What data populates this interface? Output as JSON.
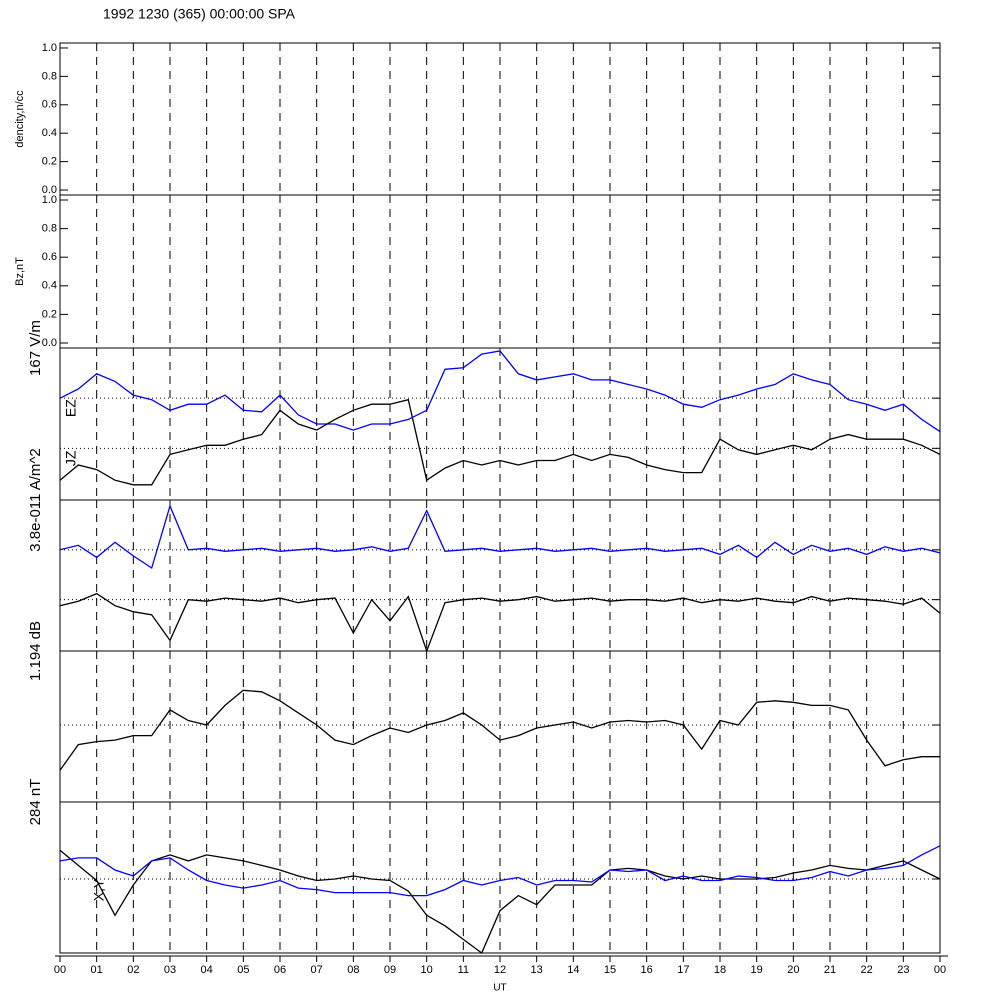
{
  "chart_data": [
    {
      "type": "line",
      "title": "1992 1230 (365) 00:00:00 SPA",
      "ylabel": "dencity,n/cc",
      "xlim": [
        0,
        24
      ],
      "ylim": [
        -0.035,
        1.035
      ],
      "yticks": [
        {
          "value": 0,
          "label": "0.0"
        },
        0.2,
        0.4,
        0.6,
        0.8,
        {
          "value": 1,
          "label": "1.0"
        }
      ],
      "grid": true
    },
    {
      "type": "line",
      "ylabel": "Bz,nT",
      "xlim": [
        0,
        24
      ],
      "ylim": [
        -0.035,
        1.035
      ],
      "yticks": [
        {
          "value": 0,
          "label": "0.0"
        },
        0.2,
        0.4,
        0.6,
        0.8,
        {
          "value": 1,
          "label": "1.0"
        }
      ],
      "grid": true
    },
    {
      "type": "line",
      "ylabel": "167 V/m",
      "xlim": [
        0,
        24
      ],
      "ylim": [
        0,
        100
      ],
      "hlines": [
        67,
        34
      ],
      "grid": true,
      "x": [
        0,
        0.5,
        1,
        1.5,
        2,
        2.5,
        3,
        3.5,
        4,
        4.5,
        5,
        5.5,
        6,
        6.5,
        7,
        7.5,
        8,
        8.5,
        9,
        9.5,
        10,
        10.5,
        11,
        11.5,
        12,
        12.5,
        13,
        13.5,
        14,
        14.5,
        15,
        15.5,
        16,
        16.5,
        17,
        17.5,
        18,
        18.5,
        19,
        19.5,
        20,
        20.5,
        21,
        21.5,
        22,
        22.5,
        23,
        23.5,
        24
      ],
      "series": [
        {
          "name": "EZ",
          "color": "#0000ff",
          "values": [
            67,
            73,
            83,
            78,
            69,
            66,
            59,
            63,
            63,
            69,
            59,
            58,
            69,
            56,
            50,
            50,
            46,
            50,
            50,
            53,
            59,
            86,
            87,
            96,
            98,
            83,
            79,
            81,
            83,
            79,
            79,
            76,
            73,
            69,
            63,
            61,
            66,
            69,
            73,
            76,
            83,
            79,
            76,
            66,
            63,
            59,
            63,
            53,
            45
          ]
        },
        {
          "name": "JZ",
          "color": "#000000",
          "values": [
            13,
            23,
            20,
            13,
            10,
            10,
            30,
            33,
            36,
            36,
            40,
            43,
            59,
            50,
            46,
            53,
            59,
            63,
            63,
            66,
            13,
            21,
            26,
            23,
            26,
            23,
            26,
            26,
            30,
            26,
            30,
            28,
            23,
            20,
            18,
            18,
            40,
            33,
            30,
            33,
            36,
            33,
            40,
            43,
            40,
            40,
            40,
            36,
            30
          ]
        }
      ]
    },
    {
      "type": "line",
      "ylabel": "3.8e-011 A/m^2",
      "xlim": [
        0,
        24
      ],
      "ylim": [
        0,
        100
      ],
      "hlines": [
        67,
        34
      ],
      "grid": true,
      "x": [
        0,
        0.5,
        1,
        1.5,
        2,
        2.5,
        3,
        3.5,
        4,
        4.5,
        5,
        5.5,
        6,
        6.5,
        7,
        7.5,
        8,
        8.5,
        9,
        9.5,
        10,
        10.5,
        11,
        11.5,
        12,
        12.5,
        13,
        13.5,
        14,
        14.5,
        15,
        15.5,
        16,
        16.5,
        17,
        17.5,
        18,
        18.5,
        19,
        19.5,
        20,
        20.5,
        21,
        21.5,
        22,
        22.5,
        23,
        23.5,
        24
      ],
      "series": [
        {
          "color": "#0000ff",
          "values": [
            67,
            70,
            62,
            72,
            63,
            55,
            96,
            67,
            68,
            66,
            67,
            68,
            66,
            67,
            68,
            66,
            67,
            69,
            66,
            68,
            93,
            66,
            67,
            68,
            66,
            67,
            68,
            66,
            67,
            68,
            66,
            67,
            68,
            66,
            67,
            68,
            64,
            70,
            62,
            72,
            64,
            70,
            66,
            68,
            64,
            69,
            66,
            68,
            65
          ]
        },
        {
          "color": "#000000",
          "values": [
            30,
            33,
            38,
            30,
            26,
            24,
            7,
            34,
            33,
            35,
            34,
            33,
            35,
            32,
            34,
            35,
            12,
            34,
            20,
            36,
            0,
            32,
            34,
            35,
            33,
            34,
            36,
            33,
            34,
            35,
            33,
            34,
            34,
            33,
            35,
            32,
            34,
            33,
            35,
            33,
            32,
            36,
            33,
            35,
            34,
            33,
            31,
            35,
            25
          ]
        }
      ]
    },
    {
      "type": "line",
      "ylabel": "1.194 dB",
      "xlim": [
        0,
        24
      ],
      "ylim": [
        0,
        100
      ],
      "hlines": [
        51
      ],
      "grid": true,
      "x": [
        0,
        0.5,
        1,
        1.5,
        2,
        2.5,
        3,
        3.5,
        4,
        4.5,
        5,
        5.5,
        6,
        6.5,
        7,
        7.5,
        8,
        8.5,
        9,
        9.5,
        10,
        10.5,
        11,
        11.5,
        12,
        12.5,
        13,
        13.5,
        14,
        14.5,
        15,
        15.5,
        16,
        16.5,
        17,
        17.5,
        18,
        18.5,
        19,
        19.5,
        20,
        20.5,
        21,
        21.5,
        22,
        22.5,
        23,
        23.5,
        24
      ],
      "series": [
        {
          "color": "#000000",
          "values": [
            21,
            38,
            40,
            41,
            44,
            44,
            61,
            54,
            51,
            64,
            74,
            73,
            67,
            59,
            51,
            41,
            38,
            44,
            49,
            46,
            51,
            54,
            59,
            51,
            41,
            44,
            49,
            51,
            53,
            49,
            53,
            54,
            53,
            54,
            51,
            35,
            54,
            51,
            66,
            67,
            66,
            64,
            64,
            61,
            41,
            24,
            28,
            30,
            30
          ]
        }
      ]
    },
    {
      "type": "line",
      "ylabel": "284 nT",
      "label": "X,Y",
      "xlim": [
        0,
        24
      ],
      "ylim": [
        0,
        100
      ],
      "hlines": [
        49
      ],
      "grid": true,
      "xlabel": "UT",
      "xticks": [
        {
          "value": 0,
          "label": "00"
        },
        {
          "value": 1,
          "label": "01"
        },
        {
          "value": 2,
          "label": "02"
        },
        {
          "value": 3,
          "label": "03"
        },
        {
          "value": 4,
          "label": "04"
        },
        {
          "value": 5,
          "label": "05"
        },
        {
          "value": 6,
          "label": "06"
        },
        {
          "value": 7,
          "label": "07"
        },
        {
          "value": 8,
          "label": "08"
        },
        {
          "value": 9,
          "label": "09"
        },
        10,
        11,
        12,
        13,
        14,
        15,
        16,
        17,
        18,
        19,
        20,
        21,
        22,
        23,
        {
          "value": 24,
          "label": "00"
        }
      ],
      "x": [
        0,
        0.5,
        1,
        1.5,
        2,
        2.5,
        3,
        3.5,
        4,
        4.5,
        5,
        5.5,
        6,
        6.5,
        7,
        7.5,
        8,
        8.5,
        9,
        9.5,
        10,
        10.5,
        11,
        11.5,
        12,
        12.5,
        13,
        13.5,
        14,
        14.5,
        15,
        15.5,
        16,
        16.5,
        17,
        17.5,
        18,
        18.5,
        19,
        19.5,
        20,
        20.5,
        21,
        21.5,
        22,
        22.5,
        23,
        23.5,
        24
      ],
      "series": [
        {
          "color": "#000000",
          "values": [
            68,
            58,
            48,
            25,
            45,
            61,
            65,
            61,
            65,
            63,
            61,
            58,
            55,
            51,
            48,
            49,
            51,
            49,
            48,
            41,
            25,
            18,
            9,
            0,
            28,
            38,
            32,
            45,
            45,
            45,
            55,
            56,
            55,
            51,
            49,
            51,
            49,
            49,
            49,
            50,
            53,
            55,
            58,
            56,
            55,
            58,
            61,
            55,
            49
          ]
        },
        {
          "color": "#0000ff",
          "values": [
            61,
            63,
            63,
            55,
            51,
            61,
            63,
            55,
            48,
            45,
            43,
            45,
            48,
            43,
            42,
            40,
            40,
            40,
            40,
            38,
            38,
            42,
            48,
            45,
            48,
            50,
            45,
            48,
            48,
            47,
            55,
            54,
            55,
            48,
            51,
            48,
            48,
            51,
            50,
            48,
            48,
            50,
            54,
            51,
            55,
            56,
            58,
            65,
            71
          ]
        }
      ]
    }
  ]
}
